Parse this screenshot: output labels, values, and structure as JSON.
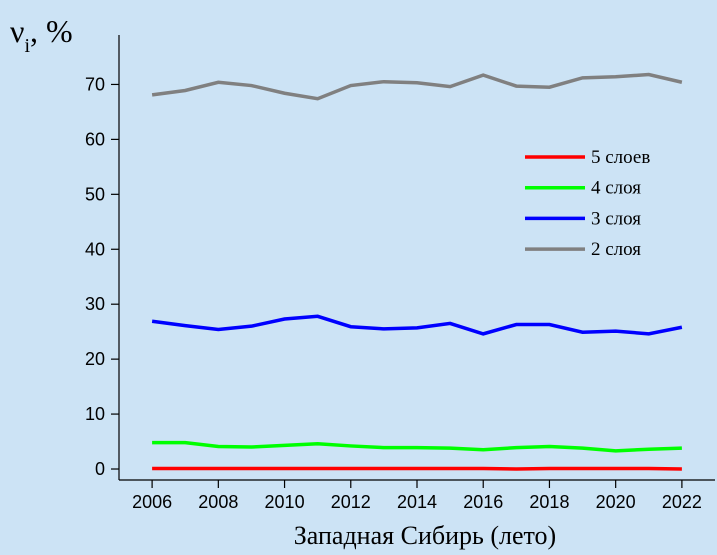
{
  "chart_data": {
    "type": "line",
    "y_label": {
      "symbol": "ν",
      "subscript": "i",
      "unit": ", %"
    },
    "x_label": "Западная Сибирь (лето)",
    "x": [
      2006,
      2007,
      2008,
      2009,
      2010,
      2011,
      2012,
      2013,
      2014,
      2015,
      2016,
      2017,
      2018,
      2019,
      2020,
      2021,
      2022
    ],
    "series": [
      {
        "name": "5 слоев",
        "color": "#ff0000",
        "values": [
          0.1,
          0.1,
          0.1,
          0.1,
          0.1,
          0.1,
          0.1,
          0.1,
          0.1,
          0.1,
          0.1,
          0.0,
          0.1,
          0.1,
          0.1,
          0.1,
          0.0
        ]
      },
      {
        "name": "4 слоя",
        "color": "#00ff00",
        "values": [
          4.8,
          4.8,
          4.1,
          4.0,
          4.3,
          4.6,
          4.2,
          3.9,
          3.9,
          3.8,
          3.5,
          3.9,
          4.1,
          3.8,
          3.3,
          3.6,
          3.8
        ]
      },
      {
        "name": "3 слоя",
        "color": "#0000ff",
        "values": [
          26.9,
          26.1,
          25.4,
          26.0,
          27.3,
          27.8,
          25.9,
          25.5,
          25.7,
          26.5,
          24.6,
          26.3,
          26.3,
          24.9,
          25.1,
          24.6,
          25.8
        ]
      },
      {
        "name": "2 слоя",
        "color": "#808080",
        "values": [
          68.1,
          68.9,
          70.4,
          69.8,
          68.4,
          67.4,
          69.8,
          70.5,
          70.3,
          69.6,
          71.7,
          69.7,
          69.5,
          71.2,
          71.4,
          71.8,
          70.4
        ]
      }
    ],
    "xlim": [
      2005,
      2023
    ],
    "xticks": [
      2006,
      2008,
      2010,
      2012,
      2014,
      2016,
      2018,
      2020,
      2022
    ],
    "ylim": [
      -2,
      79
    ],
    "yticks": [
      0,
      10,
      20,
      30,
      40,
      50,
      60,
      70
    ],
    "legend": "right"
  }
}
